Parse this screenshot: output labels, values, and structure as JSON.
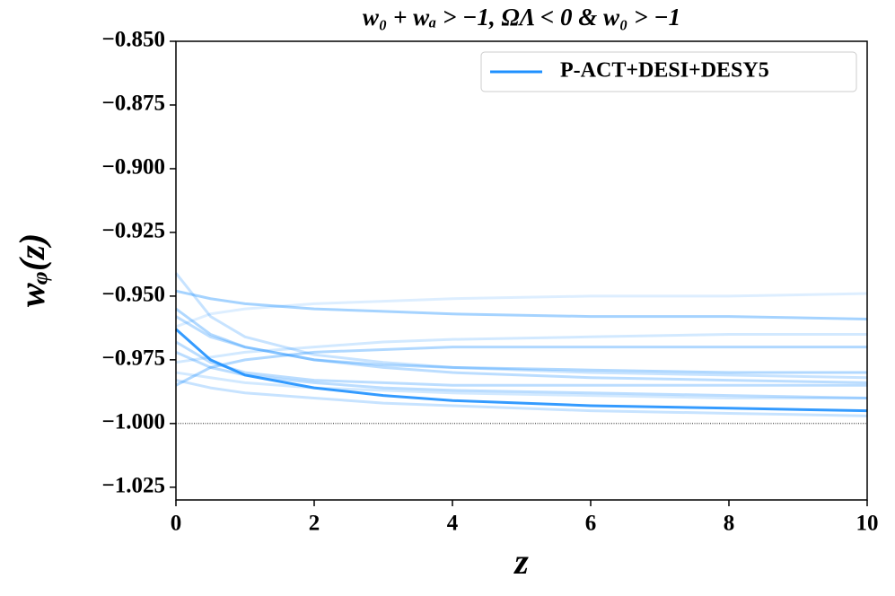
{
  "chart_data": {
    "type": "line",
    "title": "w₀ + wₐ > −1, ΩΛ < 0 & w₀ > −1",
    "x_label": "z",
    "y_label": "wᵩ(z)",
    "x": [
      0,
      0.5,
      1,
      2,
      3,
      4,
      6,
      8,
      10
    ],
    "xlim": [
      0,
      10
    ],
    "xticks": [
      0,
      2,
      4,
      6,
      8,
      10
    ],
    "ylim": [
      -1.03,
      -0.85
    ],
    "yticks": [
      {
        "value": -0.85,
        "label": "−0.850"
      },
      {
        "value": -0.875,
        "label": "−0.875"
      },
      {
        "value": -0.9,
        "label": "−0.900"
      },
      {
        "value": -0.925,
        "label": "−0.925"
      },
      {
        "value": -0.95,
        "label": "−0.950"
      },
      {
        "value": -0.975,
        "label": "−0.975"
      },
      {
        "value": -1.0,
        "label": "−1.000"
      },
      {
        "value": -1.025,
        "label": "−1.025"
      }
    ],
    "hline": -1.0,
    "legend": "upper right",
    "series": [
      {
        "name": "P-ACT+DESI+DESY5",
        "color": "#1e90ff",
        "opacity": 0.9,
        "values": [
          -0.963,
          -0.975,
          -0.981,
          -0.986,
          -0.989,
          -0.991,
          -0.993,
          -0.994,
          -0.995
        ]
      },
      {
        "color": "#1e90ff",
        "opacity": 0.4,
        "values": [
          -0.948,
          -0.951,
          -0.953,
          -0.955,
          -0.956,
          -0.957,
          -0.958,
          -0.958,
          -0.959
        ]
      },
      {
        "color": "#1e90ff",
        "opacity": 0.35,
        "values": [
          -0.955,
          -0.965,
          -0.97,
          -0.975,
          -0.977,
          -0.978,
          -0.979,
          -0.98,
          -0.98
        ]
      },
      {
        "color": "#1e90ff",
        "opacity": 0.35,
        "values": [
          -0.985,
          -0.978,
          -0.975,
          -0.972,
          -0.971,
          -0.97,
          -0.97,
          -0.97,
          -0.97
        ]
      },
      {
        "color": "#1e90ff",
        "opacity": 0.15,
        "values": [
          -0.962,
          -0.957,
          -0.955,
          -0.953,
          -0.952,
          -0.951,
          -0.95,
          -0.95,
          -0.949
        ]
      },
      {
        "color": "#1e90ff",
        "opacity": 0.3,
        "values": [
          -0.972,
          -0.978,
          -0.981,
          -0.984,
          -0.986,
          -0.987,
          -0.988,
          -0.989,
          -0.99
        ]
      },
      {
        "color": "#1e90ff",
        "opacity": 0.3,
        "values": [
          -0.968,
          -0.976,
          -0.98,
          -0.983,
          -0.984,
          -0.985,
          -0.985,
          -0.985,
          -0.985
        ]
      },
      {
        "color": "#1e90ff",
        "opacity": 0.2,
        "values": [
          -0.98,
          -0.982,
          -0.984,
          -0.986,
          -0.987,
          -0.988,
          -0.989,
          -0.99,
          -0.99
        ]
      },
      {
        "color": "#1e90ff",
        "opacity": 0.2,
        "values": [
          -0.976,
          -0.974,
          -0.972,
          -0.97,
          -0.968,
          -0.967,
          -0.966,
          -0.965,
          -0.965
        ]
      },
      {
        "color": "#1e90ff",
        "opacity": 0.25,
        "values": [
          -0.941,
          -0.958,
          -0.966,
          -0.973,
          -0.976,
          -0.978,
          -0.98,
          -0.981,
          -0.982
        ]
      },
      {
        "color": "#1e90ff",
        "opacity": 0.25,
        "values": [
          -0.983,
          -0.986,
          -0.988,
          -0.99,
          -0.992,
          -0.993,
          -0.995,
          -0.996,
          -0.997
        ]
      },
      {
        "color": "#1e90ff",
        "opacity": 0.3,
        "values": [
          -0.958,
          -0.966,
          -0.97,
          -0.975,
          -0.978,
          -0.98,
          -0.982,
          -0.983,
          -0.984
        ]
      }
    ]
  }
}
